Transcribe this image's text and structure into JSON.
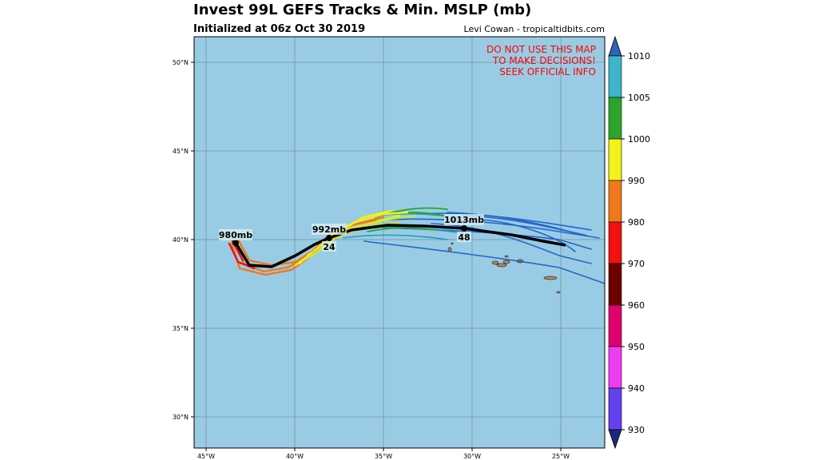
{
  "header": {
    "title": "Invest 99L GEFS Tracks & Min. MSLP (mb)",
    "subtitle": "Initialized at 06z Oct 30 2019",
    "credit": "Levi Cowan - tropicaltidbits.com"
  },
  "map": {
    "ocean_color": "#99cce4",
    "land_color": "#b88a5e",
    "warning_lines": [
      "DO NOT USE THIS MAP",
      "TO MAKE DECISIONS!",
      "SEEK OFFICIAL INFO"
    ],
    "warning_color": "#ff0000",
    "lon_labels": [
      "45°W",
      "40°W",
      "35°W",
      "30°W",
      "25°W"
    ],
    "lat_labels": [
      "50°N",
      "45°N",
      "40°N",
      "35°N",
      "30°N"
    ],
    "mean_track_labels": [
      {
        "pressure": "980mb",
        "hour": ""
      },
      {
        "pressure": "992mb",
        "hour": "24"
      },
      {
        "pressure": "1013mb",
        "hour": "48"
      }
    ]
  },
  "colorbar": {
    "ticks": [
      "1010",
      "1005",
      "1000",
      "990",
      "980",
      "970",
      "960",
      "950",
      "940",
      "930"
    ],
    "colors": [
      "#3cb6c8",
      "#2aa52a",
      "#f2f21a",
      "#f07818",
      "#f21010",
      "#6e0000",
      "#e0006e",
      "#f03cf0",
      "#6440f0"
    ],
    "top_arrow_color": "#2b63b8",
    "bottom_arrow_color": "#1a2a7a"
  }
}
